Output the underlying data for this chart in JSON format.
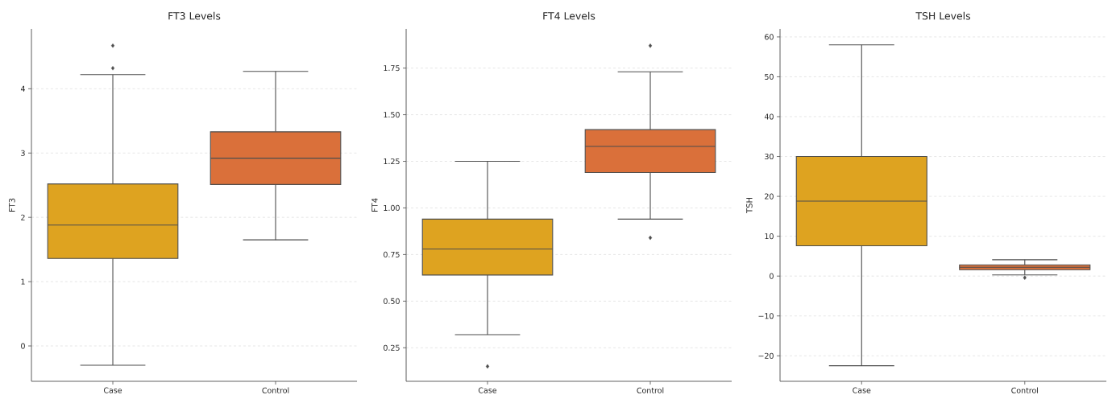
{
  "chart_data": [
    {
      "type": "box",
      "title": "FT3 Levels",
      "ylabel": "FT3",
      "categories": [
        "Case",
        "Control"
      ],
      "colors": [
        "#dea320",
        "#da703a"
      ],
      "grid": "y",
      "ylim": [
        -0.55,
        4.93
      ],
      "yticks": [
        0,
        1,
        2,
        3,
        4
      ],
      "boxes": [
        {
          "low": -0.3,
          "q1": 1.36,
          "median": 1.88,
          "q3": 2.52,
          "high": 4.22,
          "outliers": [
            4.67,
            4.32
          ]
        },
        {
          "low": 1.65,
          "q1": 2.51,
          "median": 2.92,
          "q3": 3.33,
          "high": 4.27
        }
      ]
    },
    {
      "type": "box",
      "title": "FT4 Levels",
      "ylabel": "FT4",
      "categories": [
        "Case",
        "Control"
      ],
      "colors": [
        "#dea320",
        "#da703a"
      ],
      "grid": "y",
      "ylim": [
        0.07,
        1.96
      ],
      "yticks": [
        {
          "value": 0.25,
          "label": "0.25"
        },
        {
          "value": 0.5,
          "label": "0.50"
        },
        {
          "value": 0.75,
          "label": "0.75"
        },
        {
          "value": 1.0,
          "label": "1.00"
        },
        {
          "value": 1.25,
          "label": "1.25"
        },
        {
          "value": 1.5,
          "label": "1.50"
        },
        {
          "value": 1.75,
          "label": "1.75"
        }
      ],
      "boxes": [
        {
          "low": 0.32,
          "q1": 0.64,
          "median": 0.78,
          "q3": 0.94,
          "high": 1.25,
          "outliers": [
            0.15
          ]
        },
        {
          "low": 0.94,
          "q1": 1.19,
          "median": 1.33,
          "q3": 1.42,
          "high": 1.73,
          "outliers": [
            1.87,
            0.84
          ]
        }
      ]
    },
    {
      "type": "box",
      "title": "TSH Levels",
      "ylabel": "TSH",
      "categories": [
        "Case",
        "Control"
      ],
      "colors": [
        "#dea320",
        "#da703a"
      ],
      "grid": "y",
      "ylim": [
        -26.4,
        62
      ],
      "yticks": [
        {
          "value": -20,
          "label": "−20"
        },
        {
          "value": -10,
          "label": "−10"
        },
        0,
        10,
        20,
        30,
        40,
        50,
        60
      ],
      "boxes": [
        {
          "low": -22.5,
          "q1": 7.6,
          "median": 18.8,
          "q3": 30.0,
          "high": 58.0
        },
        {
          "low": 0.3,
          "q1": 1.6,
          "median": 2.2,
          "q3": 2.8,
          "high": 4.1,
          "outliers": [
            -0.4
          ]
        }
      ]
    }
  ]
}
